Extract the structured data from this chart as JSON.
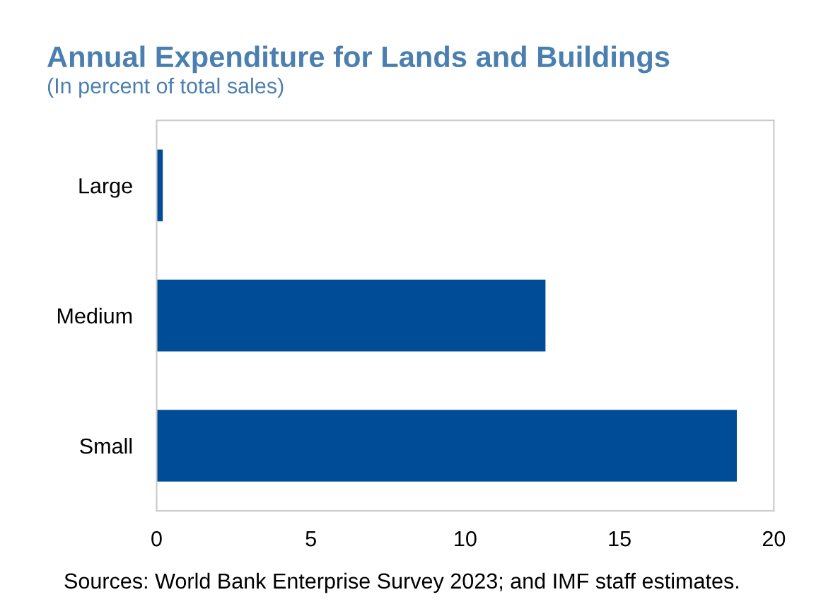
{
  "chart_data": {
    "type": "bar",
    "orientation": "horizontal",
    "title": "Annual Expenditure for Lands and Buildings",
    "subtitle": "(In percent of total sales)",
    "categories": [
      "Large",
      "Medium",
      "Small"
    ],
    "values": [
      0.2,
      12.6,
      18.8
    ],
    "color": "#004c97",
    "xlim": [
      0,
      20
    ],
    "xticks": [
      0,
      5,
      10,
      15,
      20
    ],
    "grid": false,
    "legend": false,
    "annotations": [
      "Sources: World Bank Enterprise Survey 2023; and IMF staff estimates."
    ]
  }
}
